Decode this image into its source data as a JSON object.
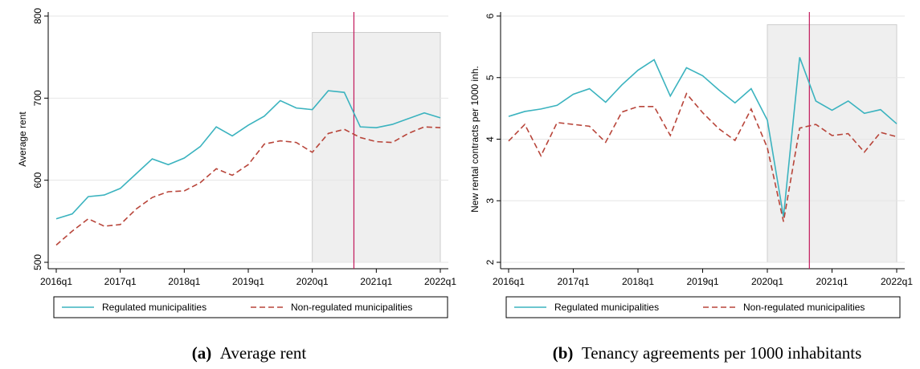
{
  "chart_data": [
    {
      "type": "line",
      "ylabel": "Average rent",
      "categories": [
        "2016q1",
        null,
        null,
        null,
        "2017q1",
        null,
        null,
        null,
        "2018q1",
        null,
        null,
        null,
        "2019q1",
        null,
        null,
        null,
        "2020q1",
        null,
        null,
        null,
        "2021q1",
        null,
        null,
        null,
        "2022q1"
      ],
      "series": [
        {
          "name": "Regulated  municipalities",
          "color": "#3bb3bf",
          "dash": false,
          "values": [
            553,
            559,
            580,
            582,
            590,
            608,
            626,
            619,
            627,
            641,
            665,
            654,
            667,
            678,
            697,
            688,
            686,
            709,
            707,
            665,
            664,
            668,
            675,
            682,
            676
          ]
        },
        {
          "name": "Non-regulated municipalities",
          "color": "#b8453a",
          "dash": true,
          "values": [
            521,
            538,
            553,
            544,
            546,
            565,
            579,
            586,
            587,
            597,
            614,
            606,
            619,
            644,
            648,
            646,
            634,
            657,
            662,
            652,
            647,
            646,
            657,
            665,
            664
          ]
        }
      ],
      "ylim": [
        500,
        800
      ],
      "yticks": [
        500,
        600,
        700,
        800
      ],
      "grid": true,
      "shade_x": [
        16,
        24
      ],
      "shade_y": [
        500,
        780
      ],
      "vline": 18.6,
      "caption_label": "(a)",
      "caption": "Average rent"
    },
    {
      "type": "line",
      "ylabel": "New rental contracts per 1000 inh.",
      "categories": [
        "2016q1",
        null,
        null,
        null,
        "2017q1",
        null,
        null,
        null,
        "2018q1",
        null,
        null,
        null,
        "2019q1",
        null,
        null,
        null,
        "2020q1",
        null,
        null,
        null,
        "2021q1",
        null,
        null,
        null,
        "2022q1"
      ],
      "series": [
        {
          "name": "Regulated  municipalities",
          "color": "#3bb3bf",
          "dash": false,
          "values": [
            4.37,
            4.45,
            4.49,
            4.55,
            4.73,
            4.82,
            4.6,
            4.88,
            5.12,
            5.29,
            4.7,
            5.16,
            5.03,
            4.8,
            4.59,
            4.82,
            4.31,
            2.74,
            5.33,
            4.62,
            4.47,
            4.62,
            4.42,
            4.48,
            4.25
          ]
        },
        {
          "name": "Non-regulated municipalities",
          "color": "#b8453a",
          "dash": true,
          "values": [
            3.97,
            4.24,
            3.73,
            4.27,
            4.24,
            4.21,
            3.95,
            4.44,
            4.53,
            4.53,
            4.06,
            4.74,
            4.43,
            4.17,
            3.98,
            4.49,
            3.86,
            2.66,
            4.18,
            4.24,
            4.06,
            4.09,
            3.79,
            4.11,
            4.04
          ]
        }
      ],
      "ylim": [
        2,
        6
      ],
      "yticks": [
        2,
        3,
        4,
        5,
        6
      ],
      "grid": true,
      "shade_x": [
        16,
        24
      ],
      "shade_y": [
        2,
        5.86
      ],
      "vline": 18.6,
      "caption_label": "(b)",
      "caption": "Tenancy agreements per 1000 inhabitants"
    }
  ]
}
